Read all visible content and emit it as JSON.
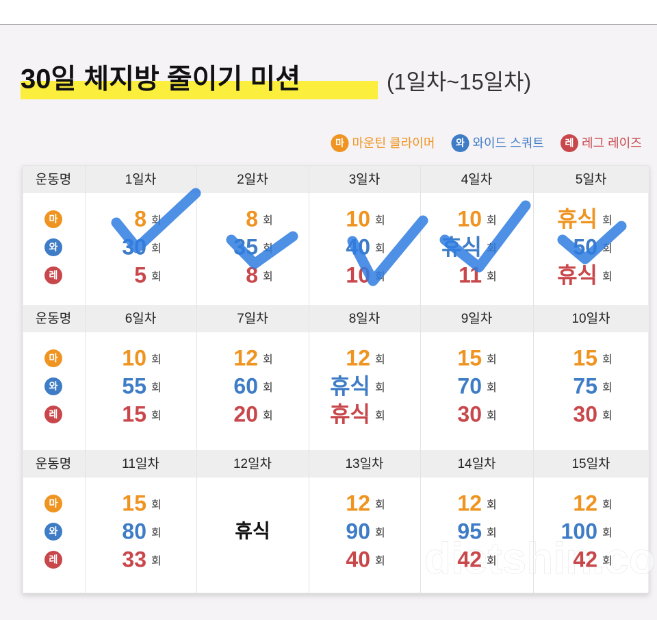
{
  "title": "30일 체지방 줄이기 미션",
  "subtitle": "(1일차~15일차)",
  "unit": "회",
  "watermark": "dietshin.com",
  "exercises": [
    {
      "badge": "마",
      "name": "마운틴 클라이머",
      "color": "#ef9420"
    },
    {
      "badge": "와",
      "name": "와이드 스쿼트",
      "color": "#3e7cc6"
    },
    {
      "badge": "레",
      "name": "레그 레이즈",
      "color": "#c8474b"
    }
  ],
  "table": {
    "blocks": [
      {
        "header": "운동명",
        "days": [
          {
            "name": "1일차",
            "values": [
              8,
              30,
              5
            ]
          },
          {
            "name": "2일차",
            "values": [
              8,
              35,
              8
            ]
          },
          {
            "name": "3일차",
            "values": [
              10,
              40,
              10
            ]
          },
          {
            "name": "4일차",
            "values": [
              10,
              "휴식",
              11
            ]
          },
          {
            "name": "5일차",
            "values": [
              "휴식",
              50,
              "휴식"
            ]
          }
        ]
      },
      {
        "header": "운동명",
        "days": [
          {
            "name": "6일차",
            "values": [
              10,
              55,
              15
            ]
          },
          {
            "name": "7일차",
            "values": [
              12,
              60,
              20
            ]
          },
          {
            "name": "8일차",
            "values": [
              12,
              "휴식",
              "휴식"
            ]
          },
          {
            "name": "9일차",
            "values": [
              15,
              70,
              30
            ]
          },
          {
            "name": "10일차",
            "values": [
              15,
              75,
              30
            ]
          }
        ]
      },
      {
        "header": "운동명",
        "days": [
          {
            "name": "11일차",
            "values": [
              15,
              80,
              33
            ]
          },
          {
            "name": "12일차",
            "rest": "휴식"
          },
          {
            "name": "13일차",
            "values": [
              12,
              90,
              40
            ]
          },
          {
            "name": "14일차",
            "values": [
              12,
              95,
              42
            ]
          },
          {
            "name": "15일차",
            "values": [
              12,
              100,
              42
            ]
          }
        ]
      }
    ]
  }
}
